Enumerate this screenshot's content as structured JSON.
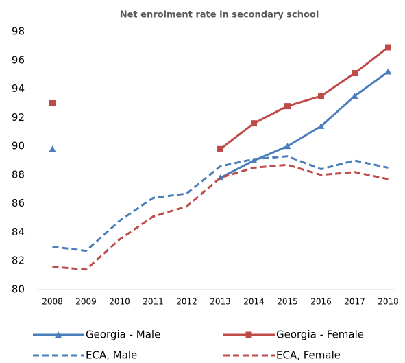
{
  "chart_data": {
    "type": "line",
    "title": "Net enrolment rate in secondary school",
    "categories": [
      "2008",
      "2009",
      "2010",
      "2011",
      "2012",
      "2013",
      "2014",
      "2015",
      "2016",
      "2017",
      "2018"
    ],
    "ylim": [
      80,
      98
    ],
    "yticks": [
      80,
      82,
      84,
      86,
      88,
      90,
      92,
      94,
      96,
      98
    ],
    "grid": false,
    "series": [
      {
        "name": "Georgia - Male",
        "color": "#4a7ebb",
        "dashed": false,
        "marker": "triangle",
        "values": [
          89.8,
          null,
          null,
          null,
          null,
          87.8,
          89.0,
          90.0,
          91.4,
          93.5,
          95.2
        ]
      },
      {
        "name": "Georgia - Female",
        "color": "#be4b48",
        "dashed": false,
        "marker": "square",
        "values": [
          93.0,
          null,
          null,
          null,
          null,
          89.8,
          91.6,
          92.8,
          93.5,
          95.1,
          96.9
        ]
      },
      {
        "name": "ECA, Male",
        "color": "#4a7ebb",
        "dashed": true,
        "marker": "none",
        "values": [
          83.0,
          82.7,
          84.8,
          86.4,
          86.7,
          88.6,
          89.1,
          89.3,
          88.4,
          89.0,
          88.5
        ]
      },
      {
        "name": "ECA, Female",
        "color": "#be4b48",
        "dashed": true,
        "marker": "none",
        "values": [
          81.6,
          81.4,
          83.5,
          85.1,
          85.8,
          87.8,
          88.5,
          88.7,
          88.0,
          88.2,
          87.7
        ]
      }
    ]
  }
}
